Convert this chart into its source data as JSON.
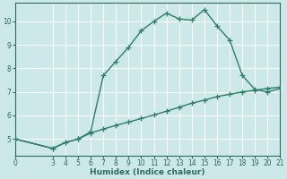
{
  "xlabel": "Humidex (Indice chaleur)",
  "background_color": "#cce8e8",
  "grid_color": "#ffffff",
  "line_color": "#2e7d6e",
  "xlim": [
    0,
    21
  ],
  "ylim": [
    4.3,
    10.8
  ],
  "xticks": [
    0,
    3,
    4,
    5,
    6,
    7,
    8,
    9,
    10,
    11,
    12,
    13,
    14,
    15,
    16,
    17,
    18,
    19,
    20,
    21
  ],
  "yticks": [
    5,
    6,
    7,
    8,
    9,
    10
  ],
  "curve1_x": [
    0,
    3,
    4,
    5,
    6,
    7,
    8,
    9,
    10,
    11,
    12,
    13,
    14,
    15,
    16,
    17,
    18,
    19,
    20,
    21
  ],
  "curve1_y": [
    5.0,
    4.6,
    4.85,
    5.0,
    5.3,
    7.7,
    8.3,
    8.9,
    9.6,
    10.0,
    10.35,
    10.1,
    10.05,
    10.5,
    9.8,
    9.2,
    7.7,
    7.1,
    7.0,
    7.15
  ],
  "curve2_x": [
    0,
    3,
    4,
    5,
    6,
    7,
    8,
    9,
    10,
    11,
    12,
    13,
    14,
    15,
    16,
    17,
    18,
    19,
    20,
    21
  ],
  "curve2_y": [
    5.0,
    4.6,
    4.85,
    5.0,
    5.25,
    5.42,
    5.58,
    5.72,
    5.87,
    6.02,
    6.18,
    6.35,
    6.52,
    6.65,
    6.8,
    6.9,
    7.0,
    7.07,
    7.15,
    7.2
  ],
  "marker": "+",
  "markersize": 4,
  "linewidth": 1.0,
  "tick_color": "#2e6b5e",
  "spine_color": "#2e6b5e",
  "xlabel_color": "#2e6b5e",
  "xlabel_fontsize": 6.5,
  "tick_fontsize": 5.5
}
